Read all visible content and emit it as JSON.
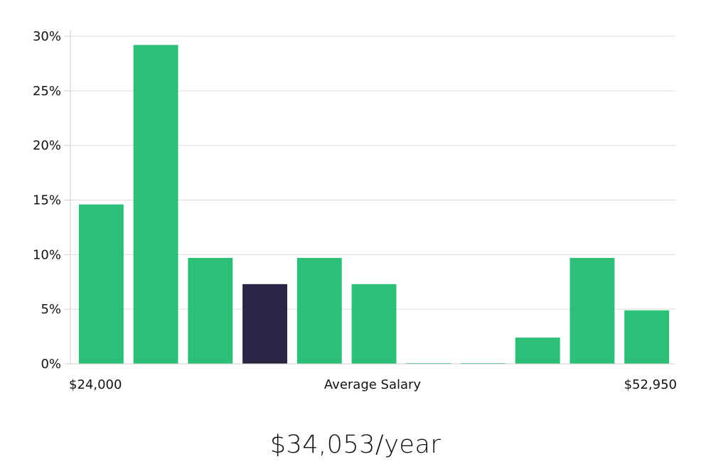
{
  "chart_data": {
    "type": "bar",
    "title": "",
    "xlabel": "Average Salary",
    "ylabel": "",
    "x_start_label": "$24,000",
    "x_end_label": "$52,950",
    "ylim": [
      0,
      30
    ],
    "yticks": [
      0,
      5,
      10,
      15,
      20,
      25,
      30
    ],
    "ytick_labels": [
      "0%",
      "5%",
      "10%",
      "15%",
      "20%",
      "25%",
      "30%"
    ],
    "values": [
      14.6,
      29.2,
      9.7,
      7.3,
      9.7,
      7.3,
      0,
      0,
      2.4,
      9.7,
      4.9
    ],
    "highlight_index": 3,
    "colors": {
      "bar": "#2bbf77",
      "highlight": "#2b2646",
      "grid": "#dddddd"
    }
  },
  "salary_summary": "$34,053/year"
}
